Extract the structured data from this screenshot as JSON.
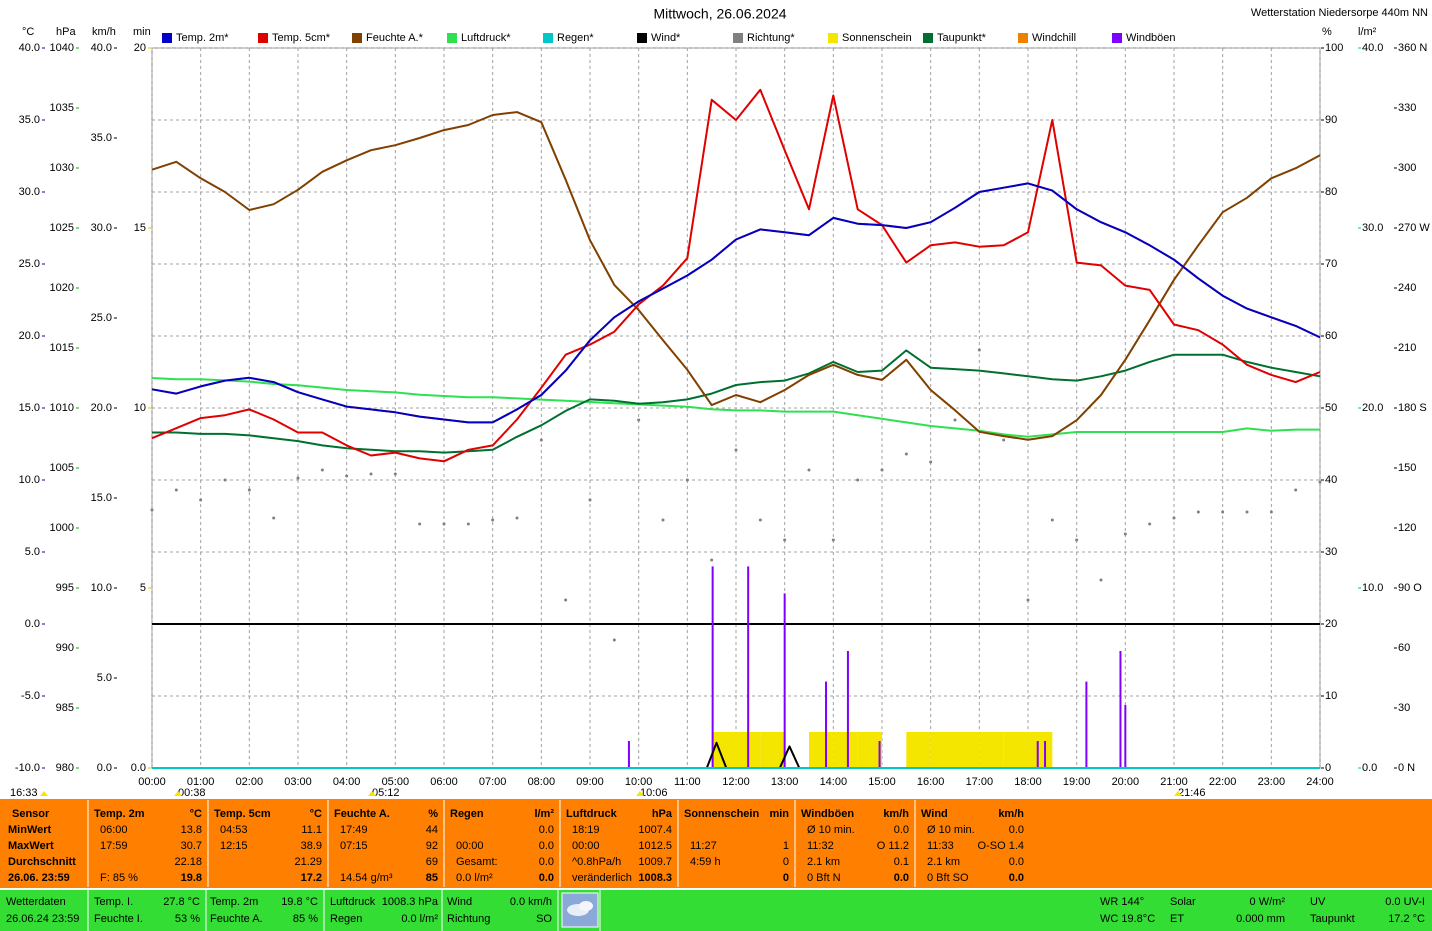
{
  "chart_data": {
    "type": "line",
    "title": "Mittwoch, 26.06.2024",
    "station": "Wetterstation Niedersorpe 440m NN",
    "grid": true,
    "xlim": [
      0,
      24
    ],
    "xticks": [
      {
        "value": 0,
        "label": "00:00"
      },
      {
        "value": 1,
        "label": "01:00"
      },
      {
        "value": 2,
        "label": "02:00"
      },
      {
        "value": 3,
        "label": "03:00"
      },
      {
        "value": 4,
        "label": "04:00"
      },
      {
        "value": 5,
        "label": "05:00"
      },
      {
        "value": 6,
        "label": "06:00"
      },
      {
        "value": 7,
        "label": "07:00"
      },
      {
        "value": 8,
        "label": "08:00"
      },
      {
        "value": 9,
        "label": "09:00"
      },
      {
        "value": 10,
        "label": "10:00"
      },
      {
        "value": 11,
        "label": "11:00"
      },
      {
        "value": 12,
        "label": "12:00"
      },
      {
        "value": 13,
        "label": "13:00"
      },
      {
        "value": 14,
        "label": "14:00"
      },
      {
        "value": 15,
        "label": "15:00"
      },
      {
        "value": 16,
        "label": "16:00"
      },
      {
        "value": 17,
        "label": "17:00"
      },
      {
        "value": 18,
        "label": "18:00"
      },
      {
        "value": 19,
        "label": "19:00"
      },
      {
        "value": 20,
        "label": "20:00"
      },
      {
        "value": 21,
        "label": "21:00"
      },
      {
        "value": 22,
        "label": "22:00"
      },
      {
        "value": 23,
        "label": "23:00"
      },
      {
        "value": 24,
        "label": "24:00"
      }
    ],
    "axes": {
      "temp": {
        "unit": "°C",
        "color": "#0000c8",
        "lim": [
          -10,
          40
        ],
        "ticks": [
          {
            "value": -10,
            "label": "-10.0"
          },
          {
            "value": -5,
            "label": "-5.0"
          },
          {
            "value": 0,
            "label": "0.0"
          },
          {
            "value": 5,
            "label": "5.0"
          },
          {
            "value": 10,
            "label": "10.0"
          },
          {
            "value": 15,
            "label": "15.0"
          },
          {
            "value": 20,
            "label": "20.0"
          },
          {
            "value": 25,
            "label": "25.0"
          },
          {
            "value": 30,
            "label": "30.0"
          },
          {
            "value": 35,
            "label": "35.0"
          },
          {
            "value": 40,
            "label": "40.0"
          }
        ]
      },
      "hpa": {
        "unit": "hPa",
        "color": "#00b000",
        "lim": [
          980,
          1040
        ],
        "ticks": [
          980,
          985,
          990,
          995,
          1000,
          1005,
          1010,
          1015,
          1020,
          1025,
          1030,
          1035,
          1040
        ]
      },
      "kmh": {
        "unit": "km/h",
        "color": "#000000",
        "lim": [
          0,
          40
        ],
        "ticks": [
          {
            "value": 0,
            "label": "0.0"
          },
          {
            "value": 5,
            "label": "5.0"
          },
          {
            "value": 10,
            "label": "10.0"
          },
          {
            "value": 15,
            "label": "15.0"
          },
          {
            "value": 20,
            "label": "20.0"
          },
          {
            "value": 25,
            "label": "25.0"
          },
          {
            "value": 30,
            "label": "30.0"
          },
          {
            "value": 35,
            "label": "35.0"
          },
          {
            "value": 40,
            "label": "40.0"
          }
        ]
      },
      "min": {
        "unit": "min",
        "color": "#e0c000",
        "lim": [
          0,
          20
        ],
        "ticks": [
          {
            "value": 0,
            "label": "0.0"
          },
          5,
          10,
          15,
          20
        ]
      },
      "pct": {
        "unit": "%",
        "color": "#000000",
        "lim": [
          0,
          100
        ],
        "ticks": [
          0,
          10,
          20,
          30,
          40,
          50,
          60,
          70,
          80,
          90,
          100
        ]
      },
      "lm2": {
        "unit": "l/m²",
        "color": "#00c0c0",
        "lim": [
          0,
          40
        ],
        "ticks": [
          {
            "value": 0,
            "label": "0.0"
          },
          {
            "value": 10,
            "label": "10.0"
          },
          {
            "value": 20,
            "label": "20.0"
          },
          {
            "value": 30,
            "label": "30.0"
          },
          {
            "value": 40,
            "label": "40.0"
          }
        ]
      },
      "dir": {
        "color": "#000000",
        "lim": [
          0,
          360
        ],
        "ticks": [
          {
            "value": 0,
            "label": "0 N"
          },
          30,
          60,
          {
            "value": 90,
            "label": "90 O"
          },
          120,
          150,
          {
            "value": 180,
            "label": "180 S"
          },
          210,
          240,
          {
            "value": 270,
            "label": "270 W"
          },
          300,
          330,
          {
            "value": 360,
            "label": "360 N"
          }
        ]
      }
    },
    "x": [
      0,
      0.5,
      1,
      1.5,
      2,
      2.5,
      3,
      3.5,
      4,
      4.5,
      5,
      5.5,
      6,
      6.5,
      7,
      7.5,
      8,
      8.5,
      9,
      9.5,
      10,
      10.5,
      11,
      11.5,
      12,
      12.5,
      13,
      13.5,
      14,
      14.5,
      15,
      15.5,
      16,
      16.5,
      17,
      17.5,
      18,
      18.5,
      19,
      19.5,
      20,
      20.5,
      21,
      21.5,
      22,
      22.5,
      23,
      23.5,
      24
    ],
    "series": [
      {
        "name": "Temp. 2m*",
        "color": "#0000c8",
        "axis": "temp",
        "style": "line",
        "values": [
          16.3,
          16.0,
          16.5,
          16.9,
          17.1,
          16.8,
          16.1,
          15.6,
          15.1,
          14.9,
          14.7,
          14.4,
          14.2,
          14.0,
          14.0,
          14.9,
          15.9,
          17.6,
          19.7,
          21.3,
          22.4,
          23.3,
          24.2,
          25.3,
          26.7,
          27.4,
          27.2,
          27.0,
          28.2,
          27.8,
          27.7,
          27.5,
          27.9,
          28.9,
          30.0,
          30.3,
          30.6,
          30.1,
          28.8,
          27.9,
          27.2,
          26.3,
          25.3,
          24.0,
          22.8,
          21.9,
          21.3,
          20.7,
          19.9
        ]
      },
      {
        "name": "Temp. 5cm*",
        "color": "#e00000",
        "axis": "temp",
        "style": "line",
        "values": [
          12.9,
          13.6,
          14.3,
          14.5,
          14.9,
          14.2,
          13.3,
          13.3,
          12.4,
          11.7,
          11.9,
          11.5,
          11.3,
          12.1,
          12.4,
          14.2,
          16.4,
          18.7,
          19.4,
          20.3,
          22.2,
          23.5,
          25.4,
          36.4,
          35.0,
          37.1,
          32.9,
          28.8,
          36.7,
          28.8,
          27.7,
          25.1,
          26.3,
          26.5,
          26.2,
          26.3,
          27.2,
          35.0,
          25.1,
          24.9,
          23.5,
          23.2,
          20.8,
          20.4,
          19.4,
          18.0,
          17.3,
          16.8,
          17.5
        ]
      },
      {
        "name": "Feuchte A.*",
        "color": "#804000",
        "axis": "pct",
        "style": "line",
        "values": [
          83.1,
          84.2,
          81.9,
          80.0,
          77.5,
          78.3,
          80.3,
          82.8,
          84.4,
          85.8,
          86.5,
          87.5,
          88.6,
          89.3,
          90.7,
          91.1,
          89.7,
          81.7,
          73.3,
          67.1,
          63.6,
          59.4,
          55.3,
          50.4,
          51.8,
          50.8,
          52.5,
          54.6,
          56.0,
          54.6,
          53.9,
          56.7,
          52.5,
          49.7,
          46.7,
          46.1,
          45.6,
          46.1,
          48.3,
          51.8,
          56.7,
          62.2,
          67.8,
          72.6,
          77.2,
          79.2,
          81.9,
          83.3,
          85.1
        ]
      },
      {
        "name": "Luftdruck*",
        "color": "#30e050",
        "axis": "hpa",
        "style": "line",
        "values": [
          1012.5,
          1012.4,
          1012.4,
          1012.3,
          1012.2,
          1012.0,
          1011.9,
          1011.7,
          1011.5,
          1011.4,
          1011.3,
          1011.1,
          1011.0,
          1010.9,
          1010.9,
          1010.8,
          1010.7,
          1010.6,
          1010.5,
          1010.4,
          1010.3,
          1010.2,
          1010.1,
          1009.9,
          1009.8,
          1009.8,
          1009.7,
          1009.7,
          1009.7,
          1009.4,
          1009.1,
          1008.8,
          1008.5,
          1008.3,
          1008.1,
          1007.8,
          1007.6,
          1007.8,
          1008.0,
          1008.0,
          1008.0,
          1008.0,
          1008.0,
          1008.0,
          1008.0,
          1008.3,
          1008.1,
          1008.2,
          1008.2
        ]
      },
      {
        "name": "Regen*",
        "color": "#00c8c8",
        "axis": "lm2",
        "style": "line",
        "x": [
          0,
          24
        ],
        "values": [
          0,
          0
        ]
      },
      {
        "name": "Wind*",
        "color": "#000000",
        "axis": "kmh",
        "style": "line",
        "x": [
          11.4,
          11.6,
          11.8,
          12.9,
          13.1,
          13.3
        ],
        "values": [
          0,
          1.4,
          0,
          0,
          1.2,
          0
        ]
      },
      {
        "name": "Richtung*",
        "color": "#808080",
        "axis": "dir",
        "style": "dots",
        "values": [
          129,
          139,
          134,
          144,
          139,
          125,
          145,
          149,
          146,
          147,
          147,
          122,
          122,
          122,
          124,
          125,
          164,
          84,
          134,
          64,
          174,
          124,
          144,
          104,
          159,
          124,
          114,
          149,
          114,
          144,
          149,
          157,
          153,
          174,
          209,
          164,
          84,
          124,
          114,
          94,
          117,
          122,
          125,
          128,
          128,
          128,
          128,
          139,
          143
        ]
      },
      {
        "name": "Sonnenschein",
        "color": "#f5e600",
        "axis": "min",
        "style": "bars",
        "values": [
          0,
          0,
          0,
          0,
          0,
          0,
          0,
          0,
          0,
          0,
          0,
          0,
          0,
          0,
          0,
          0,
          0,
          0,
          0,
          0,
          0,
          0,
          0,
          1,
          1,
          1,
          0,
          1,
          1,
          1,
          0,
          1,
          1,
          1,
          1,
          1,
          1,
          0,
          0,
          0,
          0,
          0,
          0,
          0,
          0,
          0,
          0,
          0,
          0
        ]
      },
      {
        "name": "Taupunkt*",
        "color": "#007030",
        "axis": "temp",
        "style": "line",
        "values": [
          13.3,
          13.3,
          13.2,
          13.2,
          13.1,
          12.9,
          12.7,
          12.4,
          12.2,
          12.1,
          12.0,
          12.0,
          11.9,
          12.0,
          12.1,
          13.0,
          13.8,
          14.8,
          15.6,
          15.5,
          15.3,
          15.4,
          15.6,
          16.0,
          16.6,
          16.8,
          16.9,
          17.4,
          18.2,
          17.5,
          17.6,
          19.0,
          17.8,
          17.7,
          17.6,
          17.4,
          17.2,
          17.0,
          16.9,
          17.2,
          17.6,
          18.2,
          18.7,
          18.7,
          18.7,
          18.2,
          17.8,
          17.5,
          17.2
        ]
      },
      {
        "name": "Windchill",
        "color": "#f08000",
        "axis": "temp",
        "style": "line",
        "values": [
          16.3,
          16.0,
          16.5,
          16.9,
          17.1,
          16.8,
          16.1,
          15.6,
          15.1,
          14.9,
          14.7,
          14.4,
          14.2,
          14.0,
          14.0,
          14.9,
          15.9,
          17.6,
          19.7,
          21.3,
          22.4,
          23.3,
          24.2,
          25.3,
          26.7,
          27.4,
          27.2,
          27.0,
          28.2,
          27.8,
          27.7,
          27.5,
          27.9,
          28.9,
          30.0,
          30.3,
          30.6,
          30.1,
          28.8,
          27.9,
          27.2,
          26.3,
          25.3,
          24.0,
          22.8,
          21.9,
          21.3,
          20.7,
          19.9
        ]
      },
      {
        "name": "Windböen",
        "color": "#8000ff",
        "axis": "kmh",
        "style": "spikes",
        "x": [
          9.8,
          11.52,
          12.25,
          13.0,
          13.85,
          14.3,
          14.95,
          18.2,
          18.35,
          19.2,
          19.9,
          20.0
        ],
        "values": [
          1.5,
          11.2,
          11.2,
          9.7,
          4.8,
          6.5,
          1.5,
          1.5,
          1.5,
          4.8,
          6.5,
          3.5
        ]
      }
    ],
    "markers": [
      "16:33",
      "00:38",
      "05:12",
      "10:06",
      "21:46"
    ]
  },
  "summary": {
    "columns": [
      {
        "header": [
          "Sensor"
        ],
        "rows": [
          [
            "MinWert"
          ],
          [
            "MaxWert"
          ],
          [
            "Durchschnitt"
          ],
          [
            "26.06. 23:59"
          ]
        ]
      },
      {
        "header": [
          "Temp. 2m",
          "°C"
        ],
        "rows": [
          [
            "06:00",
            "13.8"
          ],
          [
            "17:59",
            "30.7"
          ],
          [
            null,
            "22.18"
          ],
          [
            "F: 85 %",
            "19.8"
          ]
        ]
      },
      {
        "header": [
          "Temp. 5cm",
          "°C"
        ],
        "rows": [
          [
            "04:53",
            "11.1"
          ],
          [
            "12:15",
            "38.9"
          ],
          [
            null,
            "21.29"
          ],
          [
            null,
            "17.2"
          ]
        ]
      },
      {
        "header": [
          "Feuchte A.",
          "%"
        ],
        "rows": [
          [
            "17:49",
            "44"
          ],
          [
            "07:15",
            "92"
          ],
          [
            null,
            "69"
          ],
          [
            "14.54 g/m³",
            "85"
          ]
        ]
      },
      {
        "header": [
          "Regen",
          "l/m²"
        ],
        "rows": [
          [
            null,
            "0.0"
          ],
          [
            "00:00",
            "0.0"
          ],
          [
            "Gesamt:",
            "0.0"
          ],
          [
            "0.0 l/m²",
            "0.0"
          ]
        ]
      },
      {
        "header": [
          "Luftdruck",
          "hPa"
        ],
        "rows": [
          [
            "18:19",
            "1007.4"
          ],
          [
            "00:00",
            "1012.5"
          ],
          [
            "^0.8hPa/h",
            "1009.7"
          ],
          [
            "veränderlich",
            "1008.3"
          ]
        ]
      },
      {
        "header": [
          "Sonnenschein",
          "min"
        ],
        "rows": [
          [
            null,
            null
          ],
          [
            "11:27",
            "1"
          ],
          [
            "4:59 h",
            "0"
          ],
          [
            null,
            "0"
          ]
        ]
      },
      {
        "header": [
          "Windböen",
          "km/h"
        ],
        "rows": [
          [
            "Ø 10 min.",
            "0.0"
          ],
          [
            "11:32",
            "O 11.2"
          ],
          [
            "2.1 km",
            "0.1"
          ],
          [
            "0 Bft N",
            "0.0"
          ]
        ]
      },
      {
        "header": [
          "Wind",
          "km/h"
        ],
        "rows": [
          [
            "Ø 10 min.",
            "0.0"
          ],
          [
            "11:33",
            "O-SO 1.4"
          ],
          [
            "2.1 km",
            "0.0"
          ],
          [
            "0 Bft SO",
            "0.0"
          ]
        ]
      }
    ]
  },
  "status": {
    "station": [
      "Wetterdaten",
      "26.06.24 23:59"
    ],
    "cells": [
      {
        "label": "Temp. I.",
        "value": "27.8 °C"
      },
      {
        "label": "Feuchte I.",
        "value": "53 %"
      },
      {
        "label": "Temp. 2m",
        "value": "19.8 °C"
      },
      {
        "label": "Feuchte A.",
        "value": "85 %"
      },
      {
        "label": "Luftdruck",
        "value": "1008.3 hPa"
      },
      {
        "label": "Regen",
        "value": "0.0 l/m²"
      },
      {
        "label": "Wind",
        "value": "0.0 km/h"
      },
      {
        "label": "Richtung",
        "value": "SO"
      },
      {
        "label": "Solar",
        "value": "0 W/m²"
      },
      {
        "label": "ET",
        "value": "0.000 mm"
      },
      {
        "label": "UV",
        "value": "0.0 UV-I"
      },
      {
        "label": "Taupunkt",
        "value": "17.2 °C"
      }
    ],
    "wr": "WR 144°",
    "wc": "WC 19.8°C"
  }
}
